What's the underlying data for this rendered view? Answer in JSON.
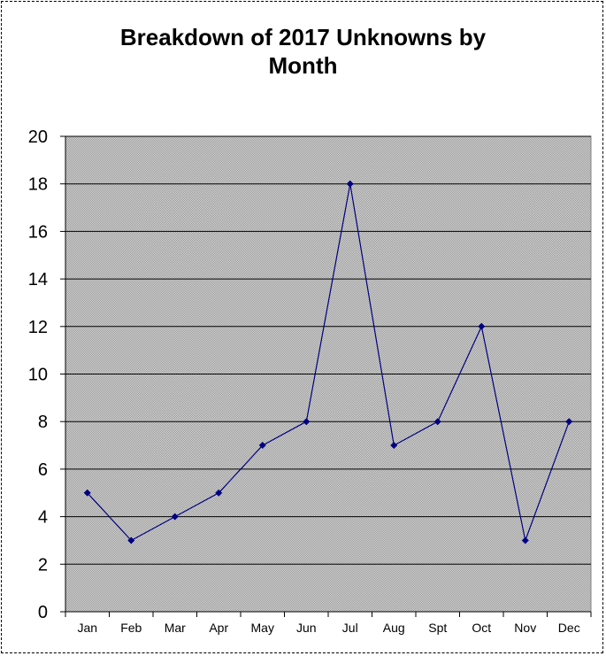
{
  "chart_data": {
    "type": "line",
    "title_lines": [
      "Breakdown of 2017 Unknowns by",
      "Month"
    ],
    "categories": [
      "Jan",
      "Feb",
      "Mar",
      "Apr",
      "May",
      "Jun",
      "Jul",
      "Aug",
      "Spt",
      "Oct",
      "Nov",
      "Dec"
    ],
    "values": [
      5,
      3,
      4,
      5,
      7,
      8,
      18,
      7,
      8,
      12,
      3,
      8
    ],
    "ylim": [
      0,
      20
    ],
    "yticks": [
      0,
      2,
      4,
      6,
      8,
      10,
      12,
      14,
      16,
      18,
      20
    ],
    "grid": true,
    "legend": "none",
    "colors": {
      "line": "#000080",
      "marker": "#000080",
      "plot_background": "#c0c0c0",
      "gridline": "#000000"
    }
  }
}
